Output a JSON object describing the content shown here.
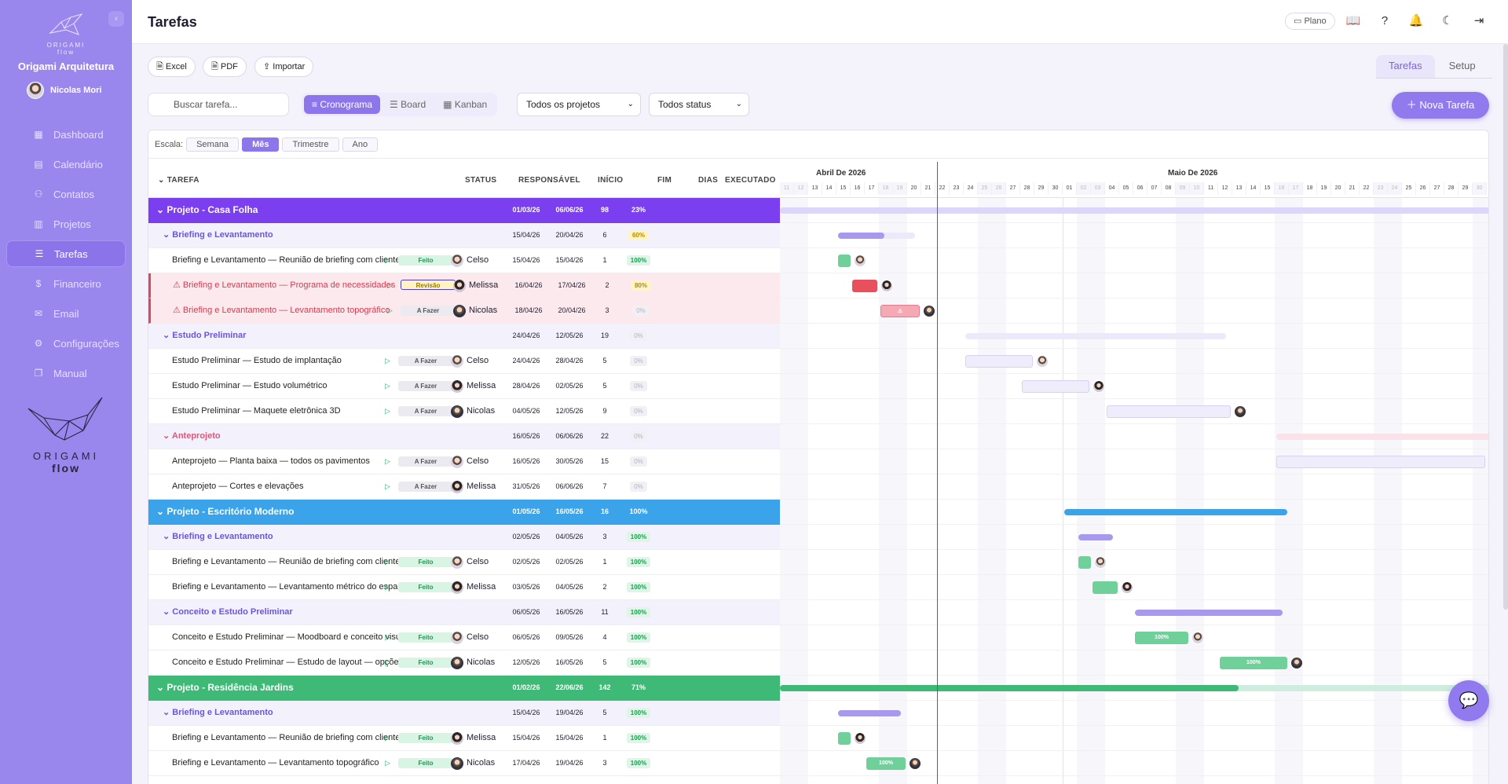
{
  "sidebar": {
    "logo_text": "ORIGAMI",
    "logo_sub": "flow",
    "org_name": "Origami Arquitetura",
    "user_name": "Nicolas Mori",
    "items": [
      {
        "label": "Dashboard",
        "icon": "grid-icon"
      },
      {
        "label": "Calendário",
        "icon": "calendar-icon"
      },
      {
        "label": "Contatos",
        "icon": "users-icon"
      },
      {
        "label": "Projetos",
        "icon": "building-icon"
      },
      {
        "label": "Tarefas",
        "icon": "list-check-icon",
        "active": true
      },
      {
        "label": "Financeiro",
        "icon": "dollar-icon"
      },
      {
        "label": "Email",
        "icon": "mail-icon"
      },
      {
        "label": "Configurações",
        "icon": "gear-icon"
      },
      {
        "label": "Manual",
        "icon": "book-icon"
      }
    ],
    "brand_big": "ORIGAMI",
    "brand_big_sub": "flow"
  },
  "header": {
    "title": "Tarefas",
    "plano_label": "Plano"
  },
  "toolbar": {
    "excel_label": "Excel",
    "pdf_label": "PDF",
    "import_label": "Importar",
    "tabs": [
      "Tarefas",
      "Setup"
    ],
    "search_placeholder": "Buscar tarefa...",
    "views": [
      "Cronograma",
      "Board",
      "Kanban"
    ],
    "project_filter": "Todos os projetos",
    "status_filter": "Todos status",
    "new_task_label": "Nova Tarefa"
  },
  "scale": {
    "label": "Escala:",
    "options": [
      "Semana",
      "Mês",
      "Trimestre",
      "Ano"
    ],
    "active": "Mês"
  },
  "columns": {
    "task": "TAREFA",
    "status": "STATUS",
    "owner": "RESPONSÁVEL",
    "start": "INÍCIO",
    "end": "FIM",
    "days": "DIAS",
    "executed": "EXECUTADO"
  },
  "timeline": {
    "months": [
      "Abril De 2026",
      "Maio De 2026"
    ]
  },
  "rows": [
    {
      "type": "project",
      "name": "Projeto - Casa Folha",
      "start": "01/03/26",
      "end": "06/06/26",
      "days": "98",
      "executed": "23%",
      "color": "#7b3ff0"
    },
    {
      "type": "phase",
      "name": "Briefing e Levantamento",
      "start": "15/04/26",
      "end": "20/04/26",
      "days": "6",
      "executed": "60%"
    },
    {
      "type": "task",
      "name": "Briefing e Levantamento — Reunião de briefing com cliente",
      "status": "Feito",
      "owner": "Celso",
      "start": "15/04/26",
      "end": "15/04/26",
      "days": "1",
      "executed": "100%"
    },
    {
      "type": "task",
      "alert": true,
      "name": "Briefing e Levantamento — Programa de necessidades",
      "status": "Revisão",
      "owner": "Melissa",
      "start": "16/04/26",
      "end": "17/04/26",
      "days": "2",
      "executed": "80%"
    },
    {
      "type": "task",
      "alert": true,
      "name": "Briefing e Levantamento — Levantamento topográfico",
      "status": "A Fazer",
      "owner": "Nicolas",
      "start": "18/04/26",
      "end": "20/04/26",
      "days": "3",
      "executed": "0%"
    },
    {
      "type": "phase",
      "name": "Estudo Preliminar",
      "start": "24/04/26",
      "end": "12/05/26",
      "days": "19",
      "executed": "0%"
    },
    {
      "type": "task",
      "name": "Estudo Preliminar — Estudo de implantação",
      "status": "A Fazer",
      "owner": "Celso",
      "start": "24/04/26",
      "end": "28/04/26",
      "days": "5",
      "executed": "0%"
    },
    {
      "type": "task",
      "name": "Estudo Preliminar — Estudo volumétrico",
      "status": "A Fazer",
      "owner": "Melissa",
      "start": "28/04/26",
      "end": "02/05/26",
      "days": "5",
      "executed": "0%"
    },
    {
      "type": "task",
      "name": "Estudo Preliminar — Maquete eletrônica 3D",
      "status": "A Fazer",
      "owner": "Nicolas",
      "start": "04/05/26",
      "end": "12/05/26",
      "days": "9",
      "executed": "0%"
    },
    {
      "type": "phase",
      "pink": true,
      "name": "Anteprojeto",
      "start": "16/05/26",
      "end": "06/06/26",
      "days": "22",
      "executed": "0%"
    },
    {
      "type": "task",
      "name": "Anteprojeto — Planta baixa — todos os pavimentos",
      "status": "A Fazer",
      "owner": "Celso",
      "start": "16/05/26",
      "end": "30/05/26",
      "days": "15",
      "executed": "0%"
    },
    {
      "type": "task",
      "name": "Anteprojeto — Cortes e elevações",
      "status": "A Fazer",
      "owner": "Melissa",
      "start": "31/05/26",
      "end": "06/06/26",
      "days": "7",
      "executed": "0%"
    },
    {
      "type": "project",
      "name": "Projeto - Escritório Moderno",
      "start": "01/05/26",
      "end": "16/05/26",
      "days": "16",
      "executed": "100%",
      "color": "#3aa3ea"
    },
    {
      "type": "phase",
      "name": "Briefing e Levantamento",
      "start": "02/05/26",
      "end": "04/05/26",
      "days": "3",
      "executed": "100%"
    },
    {
      "type": "task",
      "name": "Briefing e Levantamento — Reunião de briefing com cliente",
      "status": "Feito",
      "owner": "Celso",
      "start": "02/05/26",
      "end": "02/05/26",
      "days": "1",
      "executed": "100%"
    },
    {
      "type": "task",
      "name": "Briefing e Levantamento — Levantamento métrico do espaço",
      "status": "Feito",
      "owner": "Melissa",
      "start": "03/05/26",
      "end": "04/05/26",
      "days": "2",
      "executed": "100%"
    },
    {
      "type": "phase",
      "name": "Conceito e Estudo Preliminar",
      "start": "06/05/26",
      "end": "16/05/26",
      "days": "11",
      "executed": "100%"
    },
    {
      "type": "task",
      "name": "Conceito e Estudo Preliminar — Moodboard e conceito visual",
      "status": "Feito",
      "owner": "Celso",
      "start": "06/05/26",
      "end": "09/05/26",
      "days": "4",
      "executed": "100%"
    },
    {
      "type": "task",
      "name": "Conceito e Estudo Preliminar — Estudo de layout — opções",
      "status": "Feito",
      "owner": "Nicolas",
      "start": "12/05/26",
      "end": "16/05/26",
      "days": "5",
      "executed": "100%"
    },
    {
      "type": "project",
      "name": "Projeto - Residência Jardins",
      "start": "01/02/26",
      "end": "22/06/26",
      "days": "142",
      "executed": "71%",
      "color": "#3fba76"
    },
    {
      "type": "phase",
      "name": "Briefing e Levantamento",
      "start": "15/04/26",
      "end": "19/04/26",
      "days": "5",
      "executed": "100%"
    },
    {
      "type": "task",
      "name": "Briefing e Levantamento — Reunião de briefing com cliente",
      "status": "Feito",
      "owner": "Melissa",
      "start": "15/04/26",
      "end": "15/04/26",
      "days": "1",
      "executed": "100%"
    },
    {
      "type": "task",
      "name": "Briefing e Levantamento — Levantamento topográfico",
      "status": "Feito",
      "owner": "Nicolas",
      "start": "17/04/26",
      "end": "19/04/26",
      "days": "3",
      "executed": "100%"
    }
  ],
  "bar_labels": {
    "done": "100%",
    "alert": "⚠"
  }
}
